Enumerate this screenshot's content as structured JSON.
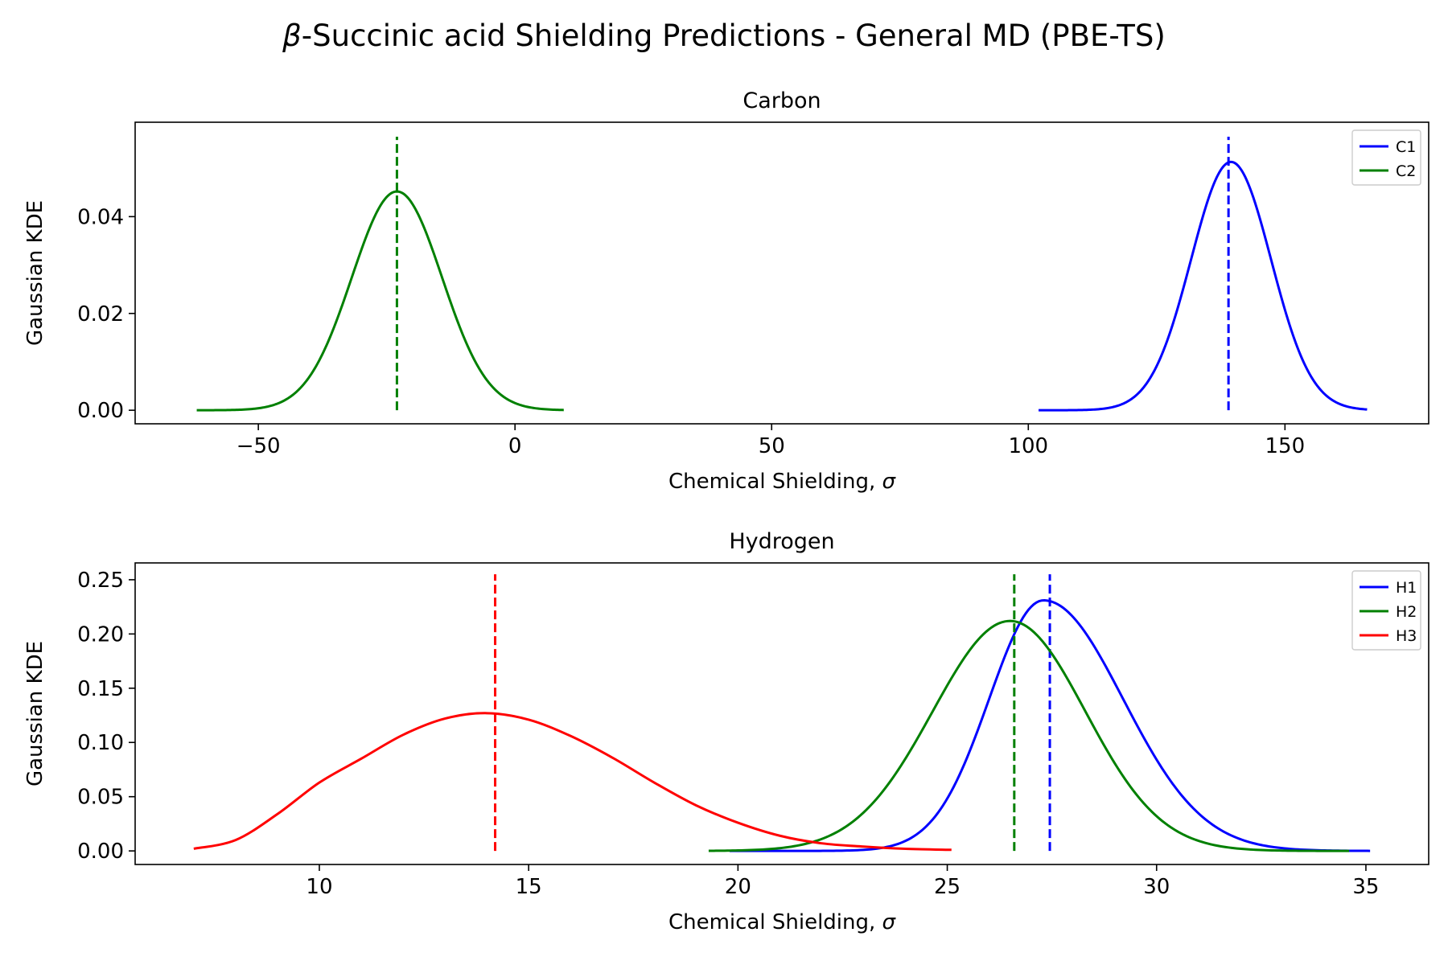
{
  "figure": {
    "title": "β-Succinic acid Shielding Predictions - General MD (PBE-TS)",
    "title_italic_prefix": "β",
    "title_rest": "-Succinic acid Shielding Predictions - General MD (PBE-TS)"
  },
  "chart_data": [
    {
      "type": "line",
      "title": "Carbon",
      "xlabel": "Chemical Shielding, σ",
      "xlabel_text": "Chemical Shielding, ",
      "xlabel_symbol": "σ",
      "ylabel": "Gaussian KDE",
      "xlim": [
        -74,
        178
      ],
      "ylim": [
        -0.0028,
        0.0595
      ],
      "xticks": [
        -50,
        0,
        50,
        100,
        150
      ],
      "xtick_labels": [
        "−50",
        "0",
        "50",
        "100",
        "150"
      ],
      "yticks": [
        0.0,
        0.02,
        0.04
      ],
      "ytick_labels": [
        "0.00",
        "0.02",
        "0.04"
      ],
      "legend_position": "top-right",
      "series": [
        {
          "name": "C1",
          "color": "#0000ff",
          "kind": "gaussian",
          "mean": 139.5,
          "std": 7.8,
          "peak": 0.0513,
          "x_range": [
            102,
            166
          ],
          "marker_x": 139.0,
          "marker_y_top": 0.0565
        },
        {
          "name": "C2",
          "color": "#008000",
          "kind": "gaussian",
          "mean": -23.0,
          "std": 8.8,
          "peak": 0.0452,
          "x_range": [
            -62,
            9.5
          ],
          "marker_x": -23.0,
          "marker_y_top": 0.0565
        }
      ]
    },
    {
      "type": "line",
      "title": "Hydrogen",
      "xlabel": "Chemical Shielding, σ",
      "xlabel_text": "Chemical Shielding, ",
      "xlabel_symbol": "σ",
      "ylabel": "Gaussian KDE",
      "xlim": [
        5.6,
        36.5
      ],
      "ylim": [
        -0.0125,
        0.2655
      ],
      "xticks": [
        10,
        15,
        20,
        25,
        30,
        35
      ],
      "xtick_labels": [
        "10",
        "15",
        "20",
        "25",
        "30",
        "35"
      ],
      "yticks": [
        0.0,
        0.05,
        0.1,
        0.15,
        0.2,
        0.25
      ],
      "ytick_labels": [
        "0.00",
        "0.05",
        "0.10",
        "0.15",
        "0.20",
        "0.25"
      ],
      "legend_position": "top-right",
      "series": [
        {
          "name": "H1",
          "color": "#0000ff",
          "kind": "skewed",
          "mean": 27.3,
          "sigma_left": 1.3,
          "sigma_right": 1.9,
          "peak": 0.231,
          "x_range": [
            19.8,
            35.1
          ],
          "marker_x": 27.45,
          "marker_y_top": 0.255
        },
        {
          "name": "H2",
          "color": "#008000",
          "kind": "skewed",
          "mean": 26.5,
          "sigma_left": 1.85,
          "sigma_right": 1.8,
          "peak": 0.212,
          "x_range": [
            19.3,
            34.6
          ],
          "marker_x": 26.6,
          "marker_y_top": 0.255
        },
        {
          "name": "H3",
          "color": "#ff0000",
          "kind": "points",
          "points": [
            [
              7.0,
              0.002
            ],
            [
              8.0,
              0.01
            ],
            [
              9.0,
              0.034
            ],
            [
              10.0,
              0.063
            ],
            [
              11.0,
              0.085
            ],
            [
              12.0,
              0.107
            ],
            [
              13.0,
              0.122
            ],
            [
              14.0,
              0.127
            ],
            [
              15.0,
              0.121
            ],
            [
              16.0,
              0.106
            ],
            [
              17.0,
              0.086
            ],
            [
              18.0,
              0.063
            ],
            [
              19.0,
              0.042
            ],
            [
              20.0,
              0.026
            ],
            [
              21.0,
              0.014
            ],
            [
              22.0,
              0.007
            ],
            [
              23.0,
              0.004
            ],
            [
              24.0,
              0.002
            ],
            [
              25.1,
              0.001
            ]
          ],
          "marker_x": 14.2,
          "marker_y_top": 0.255
        }
      ]
    }
  ]
}
